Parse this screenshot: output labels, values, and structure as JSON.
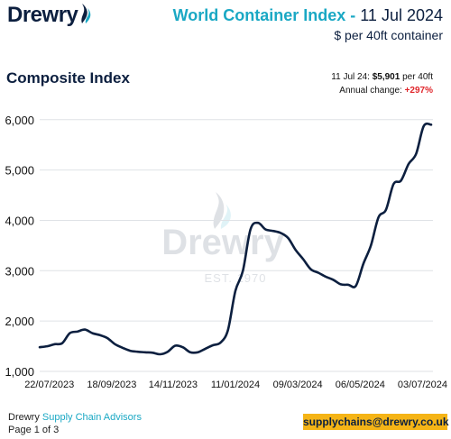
{
  "header": {
    "logo": "Drewry",
    "title_bold": "World Container Index -",
    "title_date": " 11 Jul 2024",
    "subtitle": "$ per 40ft container"
  },
  "section": {
    "title": "Composite Index"
  },
  "info": {
    "latest_prefix": "11 Jul 24: ",
    "latest_value": "$5,901",
    "latest_suffix": " per 40ft",
    "change_label": "Annual change: ",
    "change_value": "+297%"
  },
  "watermark": {
    "word": "Drewry",
    "est": "EST. 1970"
  },
  "chart_data": {
    "type": "line",
    "title": "Composite Index",
    "ylabel": "",
    "xlabel": "",
    "ylim": [
      1000,
      6300
    ],
    "yticks": [
      1000,
      2000,
      3000,
      4000,
      5000,
      6000
    ],
    "ytick_labels": [
      "1,000",
      "2,000",
      "3,000",
      "4,000",
      "5,000",
      "6,000"
    ],
    "xticks": [
      "2023-07-22",
      "2023-09-18",
      "2023-11-14",
      "2024-01-11",
      "2024-03-09",
      "2024-05-06",
      "2024-07-03"
    ],
    "xtick_labels": [
      "22/07/2023",
      "18/09/2023",
      "14/11/2023",
      "11/01/2024",
      "09/03/2024",
      "06/05/2024",
      "03/07/2024"
    ],
    "x_range": [
      "2023-07-13",
      "2024-07-11"
    ],
    "grid": "horizontal",
    "series": [
      {
        "color": "#0c1f3f",
        "points": [
          [
            "2023-07-13",
            1480
          ],
          [
            "2023-07-20",
            1500
          ],
          [
            "2023-07-27",
            1540
          ],
          [
            "2023-08-03",
            1560
          ],
          [
            "2023-08-10",
            1760
          ],
          [
            "2023-08-17",
            1790
          ],
          [
            "2023-08-24",
            1830
          ],
          [
            "2023-08-31",
            1760
          ],
          [
            "2023-09-07",
            1720
          ],
          [
            "2023-09-14",
            1660
          ],
          [
            "2023-09-21",
            1540
          ],
          [
            "2023-09-28",
            1470
          ],
          [
            "2023-10-05",
            1410
          ],
          [
            "2023-10-12",
            1390
          ],
          [
            "2023-10-19",
            1380
          ],
          [
            "2023-10-26",
            1370
          ],
          [
            "2023-11-02",
            1340
          ],
          [
            "2023-11-09",
            1390
          ],
          [
            "2023-11-16",
            1510
          ],
          [
            "2023-11-23",
            1480
          ],
          [
            "2023-11-30",
            1380
          ],
          [
            "2023-12-07",
            1380
          ],
          [
            "2023-12-14",
            1450
          ],
          [
            "2023-12-21",
            1520
          ],
          [
            "2023-12-28",
            1570
          ],
          [
            "2024-01-04",
            1820
          ],
          [
            "2024-01-11",
            2600
          ],
          [
            "2024-01-18",
            3000
          ],
          [
            "2024-01-25",
            3820
          ],
          [
            "2024-02-01",
            3950
          ],
          [
            "2024-02-08",
            3820
          ],
          [
            "2024-02-15",
            3790
          ],
          [
            "2024-02-22",
            3750
          ],
          [
            "2024-02-29",
            3650
          ],
          [
            "2024-03-07",
            3410
          ],
          [
            "2024-03-14",
            3230
          ],
          [
            "2024-03-21",
            3030
          ],
          [
            "2024-03-28",
            2960
          ],
          [
            "2024-04-04",
            2880
          ],
          [
            "2024-04-11",
            2820
          ],
          [
            "2024-04-18",
            2730
          ],
          [
            "2024-04-25",
            2720
          ],
          [
            "2024-05-02",
            2700
          ],
          [
            "2024-05-09",
            3140
          ],
          [
            "2024-05-16",
            3500
          ],
          [
            "2024-05-23",
            4060
          ],
          [
            "2024-05-30",
            4210
          ],
          [
            "2024-06-06",
            4720
          ],
          [
            "2024-06-13",
            4790
          ],
          [
            "2024-06-20",
            5120
          ],
          [
            "2024-06-27",
            5320
          ],
          [
            "2024-07-04",
            5870
          ],
          [
            "2024-07-11",
            5901
          ]
        ]
      }
    ]
  },
  "footer": {
    "company": "Drewry ",
    "division": "Supply Chain Advisors",
    "page": "Page 1 of 3",
    "email": "supplychains@drewry.co.uk"
  }
}
